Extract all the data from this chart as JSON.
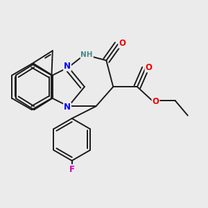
{
  "bg_color": "#ebebeb",
  "bond_color": "#1a1a1a",
  "bond_width": 1.4,
  "dbo": 0.08,
  "atom_colors": {
    "N_blue": "#0000ee",
    "NH": "#4a8888",
    "O": "#ee0000",
    "F": "#cc00bb",
    "C": "#1a1a1a"
  },
  "font_size": 8.5
}
